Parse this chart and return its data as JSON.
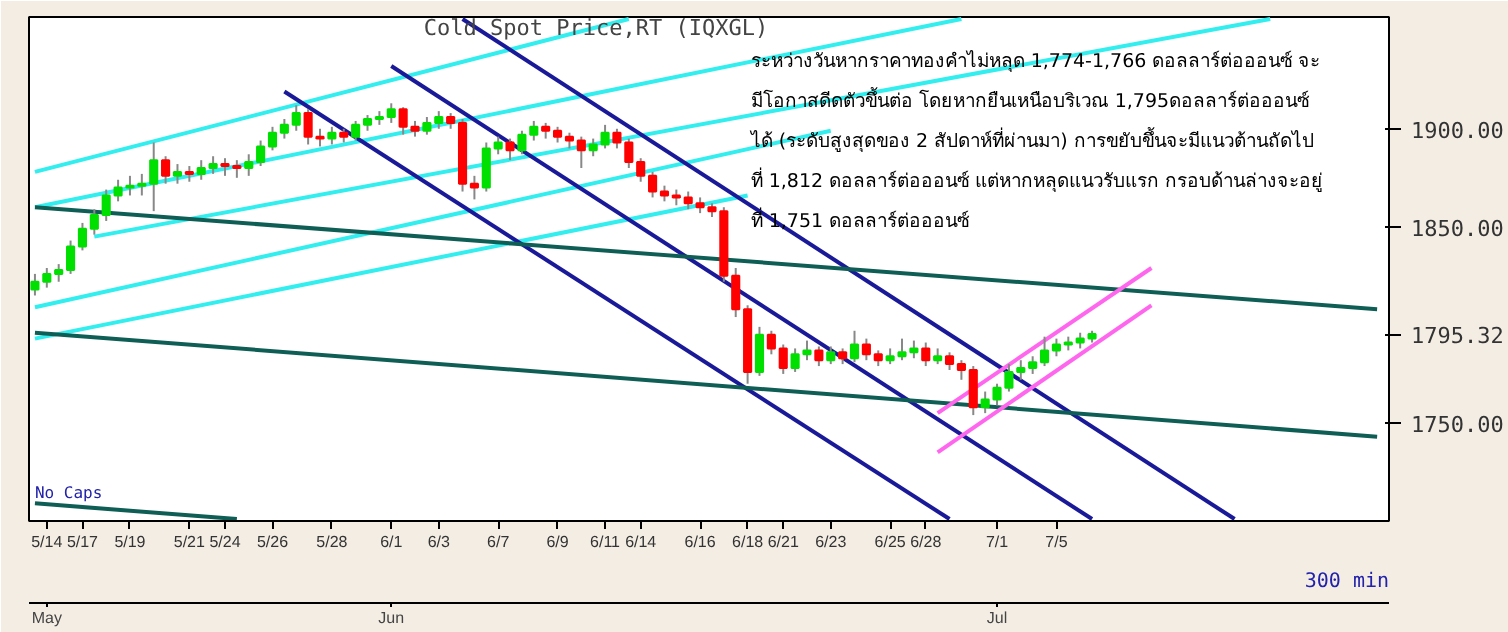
{
  "chart_data": {
    "type": "candlestick",
    "title": "Cold Spot Price,RT (IQXGL)",
    "categories": [
      null,
      "5/14",
      null,
      null,
      "5/17",
      null,
      null,
      null,
      "5/19",
      null,
      null,
      null,
      null,
      "5/21",
      null,
      null,
      "5/24",
      null,
      null,
      null,
      "5/26",
      null,
      null,
      null,
      null,
      "5/28",
      null,
      null,
      null,
      null,
      "6/1",
      null,
      null,
      null,
      "6/3",
      null,
      null,
      null,
      null,
      "6/7",
      null,
      null,
      null,
      null,
      "6/9",
      null,
      null,
      null,
      "6/11",
      null,
      null,
      "6/14",
      null,
      null,
      null,
      null,
      "6/16",
      null,
      null,
      null,
      "6/18",
      null,
      null,
      "6/21",
      null,
      null,
      null,
      "6/23",
      null,
      null,
      null,
      null,
      "6/25",
      null,
      null,
      "6/28",
      null,
      null,
      null,
      null,
      null,
      "7/1",
      null,
      null,
      null,
      null,
      "7/5",
      null,
      null,
      null,
      null,
      null,
      null,
      null,
      null,
      null,
      null,
      null,
      null,
      null,
      null,
      null,
      null,
      null,
      null,
      null,
      null,
      null,
      null,
      null,
      null,
      null,
      null,
      null
    ],
    "ohlc": [
      [
        1818,
        1826,
        1815,
        1822
      ],
      [
        1822,
        1829,
        1819,
        1826
      ],
      [
        1826,
        1831,
        1822,
        1828
      ],
      [
        1828,
        1843,
        1826,
        1840
      ],
      [
        1840,
        1852,
        1838,
        1849
      ],
      [
        1849,
        1859,
        1846,
        1856
      ],
      [
        1856,
        1869,
        1853,
        1866
      ],
      [
        1866,
        1874,
        1863,
        1870
      ],
      [
        1870,
        1876,
        1866,
        1871
      ],
      [
        1871,
        1877,
        1866,
        1872
      ],
      [
        1872,
        1893,
        1858,
        1884
      ],
      [
        1884,
        1886,
        1872,
        1876
      ],
      [
        1876,
        1882,
        1872,
        1878
      ],
      [
        1878,
        1881,
        1873,
        1877
      ],
      [
        1877,
        1884,
        1874,
        1880
      ],
      [
        1880,
        1886,
        1877,
        1882
      ],
      [
        1882,
        1885,
        1876,
        1881
      ],
      [
        1881,
        1884,
        1875,
        1880
      ],
      [
        1880,
        1887,
        1876,
        1883
      ],
      [
        1883,
        1894,
        1881,
        1891
      ],
      [
        1891,
        1901,
        1889,
        1898
      ],
      [
        1898,
        1905,
        1895,
        1902
      ],
      [
        1902,
        1912,
        1899,
        1908
      ],
      [
        1908,
        1910,
        1892,
        1896
      ],
      [
        1896,
        1900,
        1891,
        1895
      ],
      [
        1895,
        1901,
        1892,
        1898
      ],
      [
        1898,
        1900,
        1893,
        1896
      ],
      [
        1896,
        1904,
        1894,
        1902
      ],
      [
        1902,
        1907,
        1899,
        1905
      ],
      [
        1905,
        1909,
        1902,
        1906
      ],
      [
        1906,
        1913,
        1903,
        1910
      ],
      [
        1910,
        1911,
        1897,
        1901
      ],
      [
        1901,
        1904,
        1896,
        1899
      ],
      [
        1899,
        1906,
        1897,
        1903
      ],
      [
        1903,
        1909,
        1900,
        1906
      ],
      [
        1906,
        1908,
        1900,
        1903
      ],
      [
        1903,
        1905,
        1868,
        1872
      ],
      [
        1872,
        1876,
        1864,
        1870
      ],
      [
        1870,
        1893,
        1868,
        1890
      ],
      [
        1890,
        1896,
        1887,
        1893
      ],
      [
        1893,
        1895,
        1884,
        1889
      ],
      [
        1889,
        1899,
        1887,
        1897
      ],
      [
        1897,
        1904,
        1894,
        1901
      ],
      [
        1901,
        1903,
        1895,
        1899
      ],
      [
        1899,
        1901,
        1893,
        1896
      ],
      [
        1896,
        1898,
        1890,
        1894
      ],
      [
        1894,
        1896,
        1880,
        1889
      ],
      [
        1889,
        1895,
        1886,
        1892
      ],
      [
        1892,
        1902,
        1890,
        1898
      ],
      [
        1898,
        1900,
        1890,
        1893
      ],
      [
        1893,
        1895,
        1880,
        1883
      ],
      [
        1883,
        1885,
        1873,
        1876
      ],
      [
        1876,
        1878,
        1865,
        1868
      ],
      [
        1868,
        1871,
        1863,
        1866
      ],
      [
        1866,
        1869,
        1861,
        1865
      ],
      [
        1865,
        1868,
        1859,
        1862
      ],
      [
        1862,
        1865,
        1857,
        1860
      ],
      [
        1860,
        1862,
        1855,
        1858
      ],
      [
        1858,
        1860,
        1822,
        1825
      ],
      [
        1825,
        1829,
        1804,
        1808
      ],
      [
        1808,
        1810,
        1770,
        1776
      ],
      [
        1776,
        1799,
        1774,
        1795
      ],
      [
        1795,
        1797,
        1785,
        1788
      ],
      [
        1788,
        1790,
        1775,
        1778
      ],
      [
        1778,
        1788,
        1776,
        1785
      ],
      [
        1785,
        1792,
        1782,
        1787
      ],
      [
        1787,
        1789,
        1779,
        1782
      ],
      [
        1782,
        1789,
        1780,
        1786
      ],
      [
        1786,
        1788,
        1780,
        1783
      ],
      [
        1783,
        1797,
        1781,
        1790
      ],
      [
        1790,
        1793,
        1782,
        1785
      ],
      [
        1785,
        1787,
        1779,
        1782
      ],
      [
        1782,
        1788,
        1780,
        1784
      ],
      [
        1784,
        1793,
        1782,
        1786
      ],
      [
        1786,
        1792,
        1783,
        1788
      ],
      [
        1788,
        1791,
        1779,
        1782
      ],
      [
        1782,
        1788,
        1780,
        1784
      ],
      [
        1784,
        1786,
        1777,
        1780
      ],
      [
        1780,
        1782,
        1772,
        1777
      ],
      [
        1777,
        1779,
        1754,
        1758
      ],
      [
        1758,
        1766,
        1755,
        1762
      ],
      [
        1762,
        1770,
        1759,
        1768
      ],
      [
        1768,
        1780,
        1766,
        1776
      ],
      [
        1776,
        1782,
        1772,
        1778
      ],
      [
        1778,
        1784,
        1775,
        1781
      ],
      [
        1781,
        1794,
        1779,
        1787
      ],
      [
        1787,
        1793,
        1784,
        1790
      ],
      [
        1790,
        1794,
        1787,
        1791
      ],
      [
        1791,
        1796,
        1788,
        1793
      ],
      [
        1793,
        1797,
        1791,
        1795.32
      ],
      null,
      null,
      null,
      null,
      null,
      null,
      null,
      null,
      null,
      null,
      null,
      null,
      null,
      null,
      null,
      null,
      null,
      null,
      null,
      null,
      null,
      null,
      null,
      null
    ],
    "series": [
      {
        "type": "line",
        "color": "#33eeee",
        "values": [
          1878,
          null,
          null,
          null,
          null,
          null,
          null,
          null,
          null,
          null,
          null,
          null,
          null,
          null,
          null,
          null,
          null,
          null,
          null,
          null,
          null,
          null,
          null,
          null,
          null,
          null,
          null,
          null,
          null,
          null,
          null,
          null,
          null,
          null,
          null,
          null,
          null,
          null,
          null,
          null,
          null,
          null,
          null,
          null,
          null,
          null,
          null,
          null,
          null,
          null,
          1956,
          null,
          null,
          null,
          null,
          null,
          null,
          null,
          null,
          null,
          null,
          null,
          null,
          null,
          null,
          null,
          null,
          null,
          null,
          null,
          null,
          null,
          null,
          null,
          null,
          null,
          null,
          null,
          null,
          null,
          null,
          null,
          null,
          null,
          null,
          null,
          null,
          null,
          null,
          null,
          null,
          null,
          null,
          null,
          null,
          null,
          null,
          null,
          null,
          null,
          null,
          null,
          null,
          null,
          null,
          null,
          null,
          null,
          null,
          null,
          null,
          null,
          null,
          null
        ]
      },
      {
        "type": "line",
        "color": "#33eeee",
        "values": [
          1860,
          null,
          null,
          null,
          null,
          null,
          null,
          null,
          null,
          null,
          null,
          null,
          null,
          null,
          null,
          null,
          null,
          null,
          null,
          null,
          null,
          null,
          null,
          null,
          null,
          null,
          null,
          null,
          null,
          null,
          null,
          null,
          null,
          null,
          null,
          null,
          null,
          null,
          null,
          null,
          null,
          null,
          null,
          null,
          null,
          null,
          null,
          null,
          null,
          null,
          null,
          null,
          null,
          null,
          null,
          null,
          null,
          null,
          null,
          null,
          null,
          null,
          null,
          null,
          null,
          null,
          null,
          null,
          null,
          null,
          null,
          null,
          null,
          null,
          null,
          null,
          null,
          null,
          1956,
          null,
          null,
          null,
          null,
          null,
          null,
          null,
          null,
          null,
          null,
          null,
          null,
          null,
          null,
          null,
          null,
          null,
          null,
          null,
          null,
          null,
          null,
          null,
          null,
          null,
          null,
          null,
          null,
          null,
          null,
          null,
          null,
          null,
          null,
          null
        ]
      },
      {
        "type": "line",
        "color": "#33eeee",
        "values": [
          null,
          null,
          null,
          null,
          null,
          1845,
          null,
          null,
          null,
          null,
          null,
          null,
          null,
          null,
          null,
          null,
          null,
          null,
          null,
          null,
          null,
          null,
          null,
          null,
          null,
          null,
          null,
          null,
          null,
          null,
          null,
          null,
          null,
          null,
          null,
          null,
          null,
          null,
          null,
          null,
          null,
          null,
          null,
          null,
          null,
          null,
          null,
          null,
          null,
          null,
          null,
          null,
          null,
          null,
          null,
          null,
          null,
          null,
          null,
          null,
          null,
          null,
          null,
          null,
          null,
          null,
          null,
          null,
          null,
          null,
          null,
          null,
          null,
          null,
          null,
          null,
          null,
          null,
          null,
          null,
          null,
          null,
          null,
          null,
          null,
          null,
          null,
          null,
          null,
          null,
          null,
          null,
          null,
          null,
          null,
          null,
          null,
          null,
          null,
          null,
          null,
          null,
          null,
          null,
          1956,
          null,
          null,
          null,
          null,
          null,
          null,
          null,
          null,
          null
        ]
      },
      {
        "type": "line",
        "color": "#33eeee",
        "values": [
          1809,
          null,
          null,
          null,
          null,
          null,
          null,
          null,
          null,
          null,
          null,
          null,
          null,
          null,
          null,
          null,
          null,
          null,
          null,
          null,
          null,
          null,
          null,
          null,
          null,
          null,
          null,
          null,
          null,
          null,
          null,
          null,
          null,
          null,
          null,
          null,
          null,
          null,
          null,
          null,
          null,
          null,
          null,
          null,
          null,
          null,
          null,
          null,
          null,
          null,
          null,
          null,
          null,
          null,
          null,
          null,
          null,
          null,
          null,
          null,
          null,
          null,
          null,
          null,
          null,
          null,
          null,
          1899,
          null,
          null,
          null,
          null,
          null,
          null,
          null,
          null,
          null,
          null,
          null,
          null,
          null,
          null,
          null,
          null,
          null,
          null,
          null,
          null,
          null,
          null,
          null,
          null,
          null,
          null,
          null,
          null,
          null,
          null,
          null,
          null,
          null,
          null,
          null,
          null,
          null,
          null,
          null,
          null,
          null,
          null,
          null,
          null,
          null,
          null
        ]
      },
      {
        "type": "line",
        "color": "#33eeee",
        "values": [
          1793,
          null,
          null,
          null,
          null,
          null,
          null,
          null,
          null,
          null,
          null,
          null,
          null,
          null,
          null,
          null,
          null,
          null,
          null,
          null,
          null,
          null,
          null,
          null,
          null,
          null,
          null,
          null,
          null,
          null,
          null,
          null,
          null,
          null,
          null,
          null,
          null,
          null,
          null,
          null,
          null,
          null,
          null,
          null,
          null,
          null,
          null,
          null,
          null,
          null,
          null,
          null,
          null,
          null,
          null,
          null,
          null,
          null,
          null,
          null,
          1866,
          null,
          null,
          null,
          null,
          null,
          null,
          null,
          null,
          null,
          null,
          null,
          null,
          null,
          null,
          null,
          null,
          null,
          null,
          null,
          null,
          null,
          null,
          null,
          null,
          null,
          null,
          null,
          null,
          null,
          null,
          null,
          null,
          null,
          null,
          null,
          null,
          null,
          null,
          null,
          null,
          null,
          null,
          null,
          null,
          null,
          null,
          null,
          null,
          null,
          null,
          null,
          null,
          null
        ]
      },
      {
        "type": "line",
        "color": "#1a1a99",
        "values": [
          null,
          null,
          null,
          null,
          null,
          null,
          null,
          null,
          null,
          null,
          null,
          null,
          null,
          null,
          null,
          null,
          null,
          null,
          null,
          null,
          null,
          1919,
          null,
          null,
          null,
          null,
          null,
          null,
          null,
          null,
          null,
          null,
          null,
          null,
          null,
          null,
          null,
          null,
          null,
          null,
          null,
          null,
          null,
          null,
          null,
          null,
          null,
          null,
          null,
          null,
          null,
          null,
          null,
          null,
          null,
          null,
          null,
          null,
          null,
          null,
          null,
          null,
          null,
          null,
          null,
          null,
          null,
          null,
          null,
          null,
          null,
          null,
          null,
          null,
          null,
          null,
          null,
          1701,
          null,
          null,
          null,
          null,
          null,
          null,
          null,
          null,
          null,
          null,
          null,
          null,
          null,
          null,
          null,
          null,
          null,
          null,
          null,
          null,
          null,
          null,
          null,
          null,
          null,
          null,
          null,
          null,
          null,
          null,
          null,
          null,
          null,
          null,
          null,
          null
        ]
      },
      {
        "type": "line",
        "color": "#1a1a99",
        "values": [
          null,
          null,
          null,
          null,
          null,
          null,
          null,
          null,
          null,
          null,
          null,
          null,
          null,
          null,
          null,
          null,
          null,
          null,
          null,
          null,
          null,
          null,
          null,
          null,
          null,
          null,
          null,
          null,
          null,
          null,
          1932,
          null,
          null,
          null,
          null,
          null,
          null,
          null,
          null,
          null,
          null,
          null,
          null,
          null,
          null,
          null,
          null,
          null,
          null,
          null,
          null,
          null,
          null,
          null,
          null,
          null,
          null,
          null,
          null,
          null,
          null,
          null,
          null,
          null,
          null,
          null,
          null,
          null,
          null,
          null,
          null,
          null,
          null,
          null,
          null,
          null,
          null,
          null,
          null,
          null,
          null,
          null,
          null,
          null,
          null,
          null,
          null,
          null,
          null,
          1701,
          null,
          null,
          null,
          null,
          null,
          null,
          null,
          null,
          null,
          null,
          null,
          null,
          null,
          null,
          null,
          null,
          null,
          null,
          null,
          null,
          null,
          null,
          null,
          null
        ]
      },
      {
        "type": "line",
        "color": "#1a1a99",
        "values": [
          null,
          null,
          null,
          null,
          null,
          null,
          null,
          null,
          null,
          null,
          null,
          null,
          null,
          null,
          null,
          null,
          null,
          null,
          null,
          null,
          null,
          null,
          null,
          null,
          null,
          null,
          null,
          null,
          null,
          null,
          null,
          null,
          null,
          null,
          null,
          null,
          1956,
          null,
          null,
          null,
          null,
          null,
          null,
          null,
          null,
          null,
          null,
          null,
          null,
          null,
          null,
          null,
          null,
          null,
          null,
          null,
          null,
          null,
          null,
          null,
          null,
          null,
          null,
          null,
          null,
          null,
          null,
          null,
          null,
          null,
          null,
          null,
          null,
          null,
          null,
          null,
          null,
          null,
          null,
          null,
          null,
          null,
          null,
          null,
          null,
          null,
          null,
          null,
          null,
          null,
          null,
          null,
          null,
          null,
          null,
          null,
          null,
          null,
          null,
          null,
          null,
          1701,
          null,
          null,
          null,
          null,
          null,
          null,
          null,
          null,
          null,
          null,
          null,
          null
        ]
      },
      {
        "type": "line",
        "color": "#0e5e55",
        "values": [
          1860,
          null,
          null,
          null,
          null,
          null,
          null,
          null,
          null,
          null,
          null,
          null,
          null,
          null,
          null,
          null,
          null,
          null,
          null,
          null,
          null,
          null,
          null,
          null,
          null,
          null,
          null,
          null,
          null,
          null,
          null,
          null,
          null,
          null,
          null,
          null,
          null,
          null,
          null,
          null,
          null,
          null,
          null,
          null,
          null,
          null,
          null,
          null,
          null,
          null,
          null,
          null,
          null,
          null,
          null,
          null,
          null,
          null,
          null,
          null,
          null,
          null,
          null,
          null,
          null,
          null,
          null,
          null,
          null,
          null,
          null,
          null,
          null,
          null,
          null,
          null,
          null,
          null,
          null,
          null,
          null,
          null,
          null,
          null,
          null,
          null,
          null,
          null,
          null,
          null,
          null,
          null,
          null,
          null,
          null,
          null,
          null,
          null,
          null,
          null,
          null,
          null,
          null,
          null,
          null,
          null,
          null,
          null,
          null,
          null,
          null,
          null,
          null,
          1808
        ]
      },
      {
        "type": "line",
        "color": "#0e5e55",
        "values": [
          1796,
          null,
          null,
          null,
          null,
          null,
          null,
          null,
          null,
          null,
          null,
          null,
          null,
          null,
          null,
          null,
          null,
          null,
          null,
          null,
          null,
          null,
          null,
          null,
          null,
          null,
          null,
          null,
          null,
          null,
          null,
          null,
          null,
          null,
          null,
          null,
          null,
          null,
          null,
          null,
          null,
          null,
          null,
          null,
          null,
          null,
          null,
          null,
          null,
          null,
          null,
          null,
          null,
          null,
          null,
          null,
          null,
          null,
          null,
          null,
          null,
          null,
          null,
          null,
          null,
          null,
          null,
          null,
          null,
          null,
          null,
          null,
          null,
          null,
          null,
          null,
          null,
          null,
          null,
          null,
          null,
          null,
          null,
          null,
          null,
          null,
          null,
          null,
          null,
          null,
          null,
          null,
          null,
          null,
          null,
          null,
          null,
          null,
          null,
          null,
          null,
          null,
          null,
          null,
          null,
          null,
          null,
          null,
          null,
          null,
          null,
          null,
          null,
          1743
        ]
      },
      {
        "type": "line",
        "color": "#0e5e55",
        "values": [
          1709,
          null,
          null,
          null,
          null,
          null,
          null,
          null,
          null,
          null,
          null,
          null,
          null,
          null,
          null,
          null,
          null,
          1701,
          null,
          null,
          null,
          null,
          null,
          null,
          null,
          null,
          null,
          null,
          null,
          null,
          null,
          null,
          null,
          null,
          null,
          null,
          null,
          null,
          null,
          null,
          null,
          null,
          null,
          null,
          null,
          null,
          null,
          null,
          null,
          null,
          null,
          null,
          null,
          null,
          null,
          null,
          null,
          null,
          null,
          null,
          null,
          null,
          null,
          null,
          null,
          null,
          null,
          null,
          null,
          null,
          null,
          null,
          null,
          null,
          null,
          null,
          null,
          null,
          null,
          null,
          null,
          null,
          null,
          null,
          null,
          null,
          null,
          null,
          null,
          null,
          null,
          null,
          null,
          null,
          null,
          null,
          null,
          null,
          null,
          null,
          null,
          null,
          null,
          null,
          null,
          null,
          null,
          null,
          null,
          null,
          null,
          null,
          null,
          null
        ]
      },
      {
        "type": "line",
        "color": "#ff66ee",
        "values": [
          null,
          null,
          null,
          null,
          null,
          null,
          null,
          null,
          null,
          null,
          null,
          null,
          null,
          null,
          null,
          null,
          null,
          null,
          null,
          null,
          null,
          null,
          null,
          null,
          null,
          null,
          null,
          null,
          null,
          null,
          null,
          null,
          null,
          null,
          null,
          null,
          null,
          null,
          null,
          null,
          null,
          null,
          null,
          null,
          null,
          null,
          null,
          null,
          null,
          null,
          null,
          null,
          null,
          null,
          null,
          null,
          null,
          null,
          null,
          null,
          null,
          null,
          null,
          null,
          null,
          null,
          null,
          null,
          null,
          null,
          null,
          null,
          null,
          null,
          null,
          null,
          1755,
          null,
          null,
          null,
          null,
          null,
          null,
          null,
          null,
          null,
          null,
          null,
          null,
          null,
          null,
          null,
          null,
          null,
          1829,
          null,
          null,
          null,
          null,
          null,
          null,
          null,
          null,
          null,
          null,
          null,
          null,
          null,
          null,
          null,
          null,
          null,
          null,
          null
        ]
      },
      {
        "type": "line",
        "color": "#ff66ee",
        "values": [
          null,
          null,
          null,
          null,
          null,
          null,
          null,
          null,
          null,
          null,
          null,
          null,
          null,
          null,
          null,
          null,
          null,
          null,
          null,
          null,
          null,
          null,
          null,
          null,
          null,
          null,
          null,
          null,
          null,
          null,
          null,
          null,
          null,
          null,
          null,
          null,
          null,
          null,
          null,
          null,
          null,
          null,
          null,
          null,
          null,
          null,
          null,
          null,
          null,
          null,
          null,
          null,
          null,
          null,
          null,
          null,
          null,
          null,
          null,
          null,
          null,
          null,
          null,
          null,
          null,
          null,
          null,
          null,
          null,
          null,
          null,
          null,
          null,
          null,
          null,
          null,
          1735,
          null,
          null,
          null,
          null,
          null,
          null,
          null,
          null,
          null,
          null,
          null,
          null,
          null,
          null,
          null,
          null,
          null,
          1810,
          null,
          null,
          null,
          null,
          null,
          null,
          null,
          null,
          null,
          null,
          null,
          null,
          null,
          null,
          null,
          null,
          null,
          null,
          null
        ]
      }
    ],
    "ylim": [
      1700,
      1957
    ],
    "yticks": [
      {
        "value": 1750,
        "label": "1750.00"
      },
      {
        "value": 1795.32,
        "label": "1795.32"
      },
      {
        "value": 1850,
        "label": "1850.00"
      },
      {
        "value": 1900,
        "label": "1900.00"
      }
    ],
    "grid": false,
    "annotations": [
      "ระหว่างวันหากราคาทองคำไม่หลุด 1,774-1,766 ดอลลาร์ต่อออนซ์ จะ",
      "มีโอกาสดีดตัวขึ้นต่อ โดยหากยืนเหนือบริเวณ 1,795ดอลลาร์ต่อออนซ์",
      "ได้ (ระดับสูงสุดของ 2 สัปดาห์ที่ผ่านมา) การขยับขึ้นจะมีแนวต้านถัดไป",
      "ที่ 1,812 ดอลลาร์ต่อออนซ์ แต่หากหลุดแนวรับแรก กรอบด้านล่างจะอยู่",
      "ที่ 1,751 ดอลลาร์ต่อออนซ์",
      "No Caps",
      "300 min",
      "May",
      "Jun",
      "Jul"
    ]
  }
}
